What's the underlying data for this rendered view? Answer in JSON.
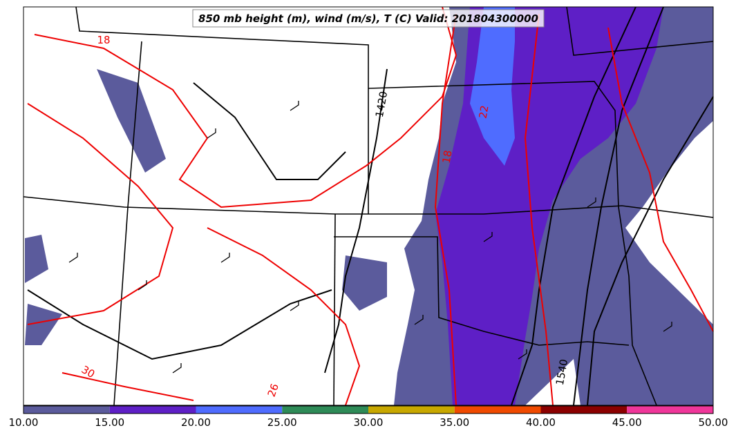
{
  "title": "850 mb height (m), wind (m/s), T (C) Valid: 201804300000",
  "contour_labels": [
    {
      "text": "1420",
      "kind": "height"
    },
    {
      "text": "1540",
      "kind": "height"
    },
    {
      "text": "18",
      "kind": "temperature"
    },
    {
      "text": "22",
      "kind": "temperature"
    },
    {
      "text": "18",
      "kind": "temperature"
    },
    {
      "text": "26",
      "kind": "temperature"
    },
    {
      "text": "30",
      "kind": "temperature"
    }
  ],
  "colorbar": {
    "colors": [
      "#5b5b9c",
      "#5e1fc6",
      "#4f6cff",
      "#2e8b57",
      "#c8a800",
      "#f04a00",
      "#8b0000",
      "#f0369a"
    ],
    "ticks": [
      "10.00",
      "15.00",
      "20.00",
      "25.00",
      "30.00",
      "35.00",
      "40.00",
      "45.00",
      "50.00"
    ]
  }
}
